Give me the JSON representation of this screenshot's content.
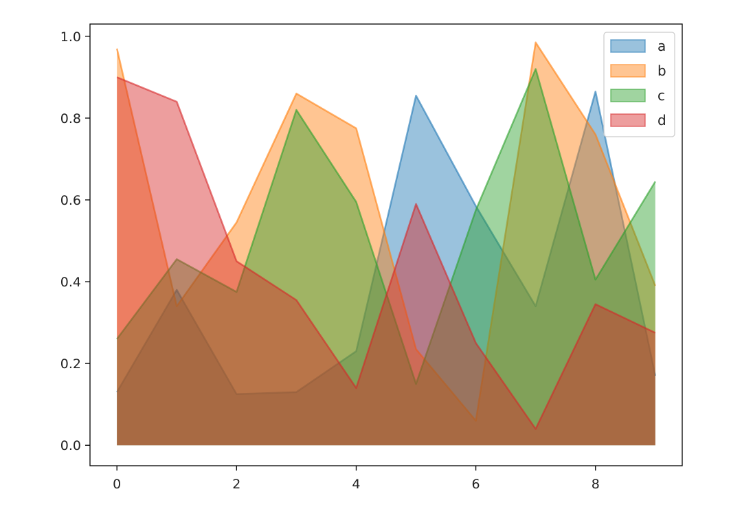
{
  "chart_data": {
    "type": "area",
    "title": "",
    "xlabel": "",
    "ylabel": "",
    "x": [
      0,
      1,
      2,
      3,
      4,
      5,
      6,
      7,
      8,
      9
    ],
    "xlim": [
      -0.45,
      9.45
    ],
    "ylim": [
      -0.05,
      1.03
    ],
    "xticks": [
      0,
      2,
      4,
      6,
      8
    ],
    "xtick_labels": [
      "0",
      "2",
      "4",
      "6",
      "8"
    ],
    "yticks": [
      0.0,
      0.2,
      0.4,
      0.6,
      0.8,
      1.0
    ],
    "ytick_labels": [
      "0.0",
      "0.2",
      "0.4",
      "0.6",
      "0.8",
      "1.0"
    ],
    "stacked": false,
    "grid": false,
    "legend_position": "top-right",
    "series": [
      {
        "name": "a",
        "color": "#1f77b4",
        "values": [
          0.13,
          0.38,
          0.125,
          0.13,
          0.23,
          0.855,
          0.585,
          0.34,
          0.865,
          0.17
        ]
      },
      {
        "name": "b",
        "color": "#ff7f0e",
        "values": [
          0.97,
          0.34,
          0.545,
          0.86,
          0.775,
          0.235,
          0.06,
          0.985,
          0.76,
          0.39
        ]
      },
      {
        "name": "c",
        "color": "#2ca02c",
        "values": [
          0.26,
          0.455,
          0.375,
          0.82,
          0.595,
          0.15,
          0.575,
          0.92,
          0.405,
          0.645
        ]
      },
      {
        "name": "d",
        "color": "#d62728",
        "values": [
          0.9,
          0.84,
          0.45,
          0.355,
          0.14,
          0.59,
          0.25,
          0.04,
          0.345,
          0.275
        ]
      }
    ]
  }
}
